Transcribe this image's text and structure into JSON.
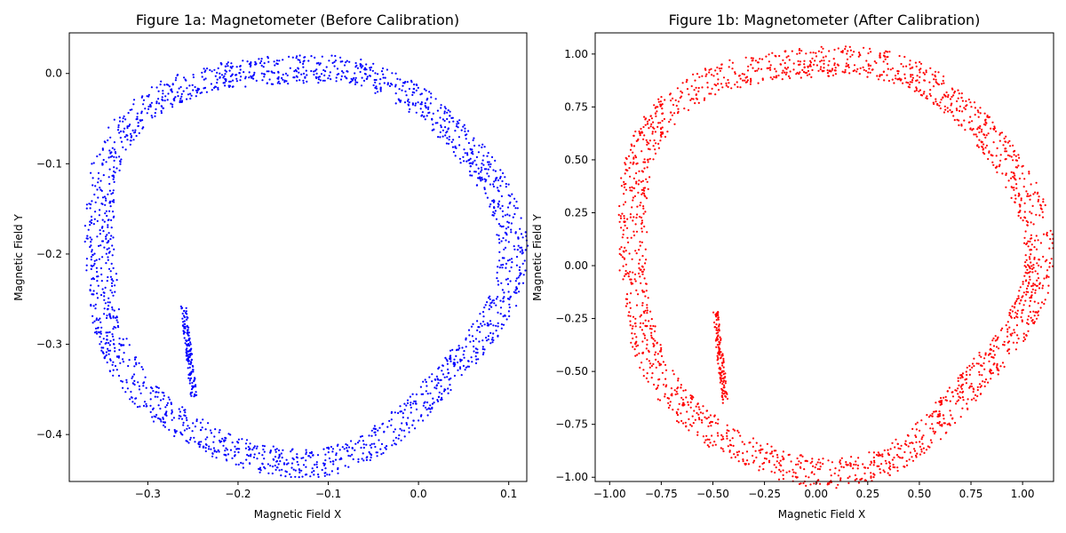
{
  "chart_data": [
    {
      "type": "scatter",
      "title": "Figure 1a: Magnetometer (Before Calibration)",
      "xlabel": "Magnetic Field X",
      "ylabel": "Magnetic Field Y",
      "xlim": [
        -0.387,
        0.12
      ],
      "ylim": [
        -0.452,
        0.045
      ],
      "xticks": [
        -0.3,
        -0.2,
        -0.1,
        0.0,
        0.1
      ],
      "yticks": [
        0.0,
        -0.1,
        -0.2,
        -0.3,
        -0.4
      ],
      "xtick_labels": [
        "−0.3",
        "−0.2",
        "−0.1",
        "0.0",
        "0.1"
      ],
      "ytick_labels": [
        "0.0",
        "−0.1",
        "−0.2",
        "−0.3",
        "−0.4"
      ],
      "color": "#0000ff",
      "grid": false,
      "approximate_shape": {
        "center": [
          -0.135,
          -0.205
        ],
        "radius_x": 0.228,
        "radius_y": 0.218,
        "point_count_estimate": 2000
      }
    },
    {
      "type": "scatter",
      "title": "Figure 1b: Magnetometer (After Calibration)",
      "xlabel": "Magnetic Field X",
      "ylabel": "Magnetic Field Y",
      "xlim": [
        -1.07,
        1.15
      ],
      "ylim": [
        -1.02,
        1.1
      ],
      "xticks": [
        -1.0,
        -0.75,
        -0.5,
        -0.25,
        0.0,
        0.25,
        0.5,
        0.75,
        1.0
      ],
      "yticks": [
        1.0,
        0.75,
        0.5,
        0.25,
        0.0,
        -0.25,
        -0.5,
        -0.75,
        -1.0
      ],
      "xtick_labels": [
        "−1.00",
        "−0.75",
        "−0.50",
        "−0.25",
        "0.00",
        "0.25",
        "0.50",
        "0.75",
        "1.00"
      ],
      "ytick_labels": [
        "1.00",
        "0.75",
        "0.50",
        "0.25",
        "0.00",
        "−0.25",
        "−0.50",
        "−0.75",
        "−1.00"
      ],
      "color": "#ff0000",
      "grid": false,
      "approximate_shape": {
        "center": [
          0.05,
          0.03
        ],
        "radius_x": 0.98,
        "radius_y": 0.97,
        "point_count_estimate": 2000
      }
    }
  ]
}
